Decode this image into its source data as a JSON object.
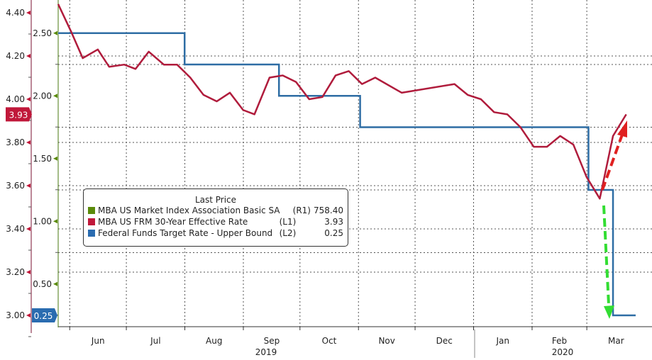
{
  "chart_data": {
    "type": "line",
    "title": "",
    "legend": {
      "title": "Last Price",
      "placement": "bottom-left",
      "entries": [
        {
          "label": "MBA US Market Index Association Basic SA",
          "axis": "(R1)",
          "value": "758.40",
          "color": "#5a8a0a"
        },
        {
          "label": "MBA US FRM 30-Year Effective Rate",
          "axis": "(L1)",
          "value": "3.93",
          "color": "#c0183a"
        },
        {
          "label": "Federal Funds Target Rate - Upper Bound",
          "axis": "(L2)",
          "value": "0.25",
          "color": "#2a6cb0"
        }
      ]
    },
    "axis_L1": {
      "range": [
        2.9,
        4.45
      ],
      "ticks": [
        "4.40",
        "4.20",
        "4.00",
        "3.80",
        "3.60",
        "3.40",
        "3.20",
        "3.00"
      ],
      "last_badge": "3.93",
      "color": "#c0183a"
    },
    "axis_L2": {
      "range": [
        0.1,
        2.7
      ],
      "ticks": [
        "2.50",
        "2.00",
        "1.50",
        "1.00",
        "0.50"
      ],
      "last_badge": "0.25",
      "color": "#2a6cb0"
    },
    "x_months": [
      "Jun",
      "Jul",
      "Aug",
      "Sep",
      "Oct",
      "Nov",
      "Dec",
      "Jan",
      "Feb",
      "Mar"
    ],
    "x_years": [
      "2019",
      "2020"
    ],
    "series": [
      {
        "name": "MBA US FRM 30-Year Effective Rate",
        "axis": "L1",
        "color": "#b01c3c",
        "dates": [
          "2019-05-24",
          "2019-05-31",
          "2019-06-06",
          "2019-06-14",
          "2019-06-20",
          "2019-06-28",
          "2019-07-04",
          "2019-07-11",
          "2019-07-19",
          "2019-07-26",
          "2019-08-02",
          "2019-08-09",
          "2019-08-16",
          "2019-08-23",
          "2019-08-30",
          "2019-09-05",
          "2019-09-13",
          "2019-09-20",
          "2019-09-27",
          "2019-10-04",
          "2019-10-11",
          "2019-10-18",
          "2019-10-25",
          "2019-11-01",
          "2019-11-08",
          "2019-11-22",
          "2019-12-20",
          "2019-12-27",
          "2020-01-03",
          "2020-01-10",
          "2020-01-17",
          "2020-01-24",
          "2020-01-31",
          "2020-02-07",
          "2020-02-14",
          "2020-02-21",
          "2020-02-28",
          "2020-03-06",
          "2020-03-13",
          "2020-03-20"
        ],
        "values": [
          4.44,
          4.31,
          4.19,
          4.23,
          4.15,
          4.16,
          4.14,
          4.22,
          4.16,
          4.16,
          4.1,
          4.02,
          3.99,
          4.03,
          3.95,
          3.93,
          4.1,
          4.11,
          4.08,
          4.0,
          4.01,
          4.11,
          4.13,
          4.07,
          4.1,
          4.03,
          4.07,
          4.02,
          4.0,
          3.94,
          3.93,
          3.87,
          3.78,
          3.78,
          3.83,
          3.79,
          3.64,
          3.54,
          3.83,
          3.93
        ]
      },
      {
        "name": "Federal Funds Target Rate - Upper Bound",
        "axis": "L2",
        "color": "#2e6da4",
        "step": true,
        "dates": [
          "2019-05-24",
          "2019-07-30",
          "2019-09-18",
          "2019-10-31",
          "2020-02-29",
          "2020-03-13",
          "2020-03-25"
        ],
        "values": [
          2.5,
          2.25,
          2.0,
          1.75,
          1.25,
          0.25,
          0.25
        ]
      }
    ],
    "annotations": [
      {
        "type": "arrow",
        "direction": "up",
        "color": "#e02020"
      },
      {
        "type": "arrow",
        "direction": "down",
        "color": "#33dd33"
      }
    ]
  }
}
